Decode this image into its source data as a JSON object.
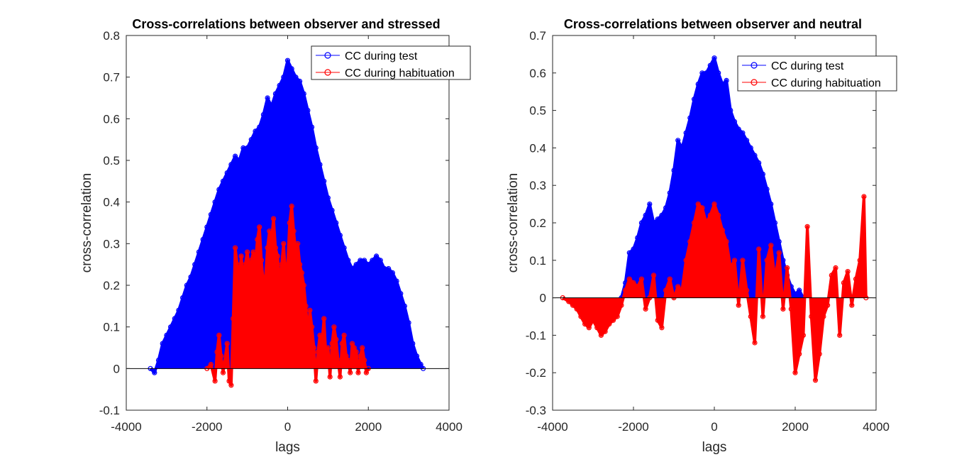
{
  "chart_data": [
    {
      "type": "line",
      "title": "Cross-correlations between observer and stressed",
      "xlabel": "lags",
      "ylabel": "cross-correlation",
      "xlim": [
        -4000,
        4000
      ],
      "ylim": [
        -0.1,
        0.8
      ],
      "xticks": [
        "-4000",
        "-2000",
        "0",
        "2000",
        "4000"
      ],
      "yticks": [
        "-0.1",
        "0",
        "0.1",
        "0.2",
        "0.3",
        "0.4",
        "0.5",
        "0.6",
        "0.7",
        "0.8"
      ],
      "grid": false,
      "legend_position": "top-right",
      "series": [
        {
          "name": "CC during test",
          "color": "#0000ff",
          "marker": "circle",
          "x": [
            -3400,
            -3300,
            -3200,
            -3100,
            -3000,
            -2900,
            -2800,
            -2700,
            -2600,
            -2500,
            -2400,
            -2300,
            -2200,
            -2100,
            -2000,
            -1900,
            -1800,
            -1700,
            -1600,
            -1500,
            -1400,
            -1300,
            -1200,
            -1100,
            -1000,
            -900,
            -800,
            -700,
            -600,
            -500,
            -400,
            -300,
            -200,
            -100,
            0,
            100,
            200,
            300,
            400,
            500,
            600,
            700,
            800,
            900,
            1000,
            1100,
            1200,
            1300,
            1400,
            1500,
            1600,
            1700,
            1800,
            1900,
            2000,
            2100,
            2200,
            2300,
            2400,
            2500,
            2600,
            2700,
            2800,
            2900,
            3000,
            3100,
            3200,
            3300,
            3360
          ],
          "values": [
            0.0,
            -0.01,
            0.02,
            0.06,
            0.08,
            0.1,
            0.12,
            0.14,
            0.17,
            0.2,
            0.22,
            0.25,
            0.28,
            0.31,
            0.34,
            0.37,
            0.4,
            0.43,
            0.45,
            0.47,
            0.49,
            0.51,
            0.5,
            0.53,
            0.53,
            0.55,
            0.57,
            0.58,
            0.61,
            0.65,
            0.63,
            0.66,
            0.68,
            0.7,
            0.74,
            0.72,
            0.7,
            0.69,
            0.66,
            0.62,
            0.58,
            0.53,
            0.49,
            0.45,
            0.41,
            0.38,
            0.35,
            0.32,
            0.29,
            0.26,
            0.24,
            0.25,
            0.26,
            0.26,
            0.25,
            0.26,
            0.27,
            0.26,
            0.24,
            0.24,
            0.23,
            0.21,
            0.18,
            0.15,
            0.11,
            0.06,
            0.03,
            0.01,
            0.0
          ]
        },
        {
          "name": "CC during habituation",
          "color": "#ff0000",
          "marker": "circle",
          "x": [
            -2000,
            -1900,
            -1800,
            -1750,
            -1700,
            -1650,
            -1600,
            -1500,
            -1450,
            -1400,
            -1350,
            -1300,
            -1250,
            -1200,
            -1150,
            -1100,
            -1050,
            -1000,
            -950,
            -900,
            -850,
            -800,
            -750,
            -700,
            -650,
            -600,
            -550,
            -500,
            -450,
            -400,
            -350,
            -300,
            -250,
            -200,
            -150,
            -100,
            -50,
            0,
            50,
            100,
            150,
            200,
            250,
            300,
            350,
            400,
            450,
            500,
            550,
            600,
            650,
            700,
            750,
            800,
            850,
            900,
            950,
            1000,
            1050,
            1100,
            1150,
            1200,
            1250,
            1300,
            1350,
            1400,
            1450,
            1500,
            1550,
            1600,
            1650,
            1700,
            1750,
            1800,
            1850,
            1900,
            1950,
            2000
          ],
          "values": [
            0.0,
            0.01,
            -0.03,
            0.04,
            0.08,
            0.03,
            -0.01,
            0.06,
            -0.03,
            -0.04,
            0.12,
            0.29,
            0.25,
            0.22,
            0.27,
            0.22,
            0.25,
            0.28,
            0.24,
            0.26,
            0.28,
            0.25,
            0.31,
            0.34,
            0.26,
            0.2,
            0.22,
            0.29,
            0.33,
            0.31,
            0.36,
            0.29,
            0.27,
            0.2,
            0.25,
            0.3,
            0.22,
            0.25,
            0.35,
            0.39,
            0.33,
            0.28,
            0.3,
            0.25,
            0.23,
            0.2,
            0.15,
            0.08,
            0.14,
            0.1,
            0.05,
            -0.03,
            0.04,
            0.08,
            0.06,
            0.12,
            0.03,
            0.05,
            -0.02,
            0.06,
            0.1,
            0.07,
            0.02,
            -0.02,
            0.06,
            0.08,
            0.03,
            0.02,
            -0.01,
            0.06,
            0.05,
            0.04,
            -0.01,
            0.03,
            0.05,
            0.02,
            -0.01,
            0.0
          ]
        }
      ]
    },
    {
      "type": "line",
      "title": "Cross-correlations between observer and neutral",
      "xlabel": "lags",
      "ylabel": "cross-correlation",
      "xlim": [
        -4000,
        4000
      ],
      "ylim": [
        -0.3,
        0.7
      ],
      "xticks": [
        "-4000",
        "-2000",
        "0",
        "2000",
        "4000"
      ],
      "yticks": [
        "-0.3",
        "-0.2",
        "-0.1",
        "0",
        "0.1",
        "0.2",
        "0.3",
        "0.4",
        "0.5",
        "0.6",
        "0.7"
      ],
      "grid": false,
      "legend_position": "top-right",
      "series": [
        {
          "name": "CC during test",
          "color": "#0000ff",
          "marker": "circle",
          "x": [
            -2300,
            -2200,
            -2100,
            -2000,
            -1900,
            -1800,
            -1700,
            -1600,
            -1500,
            -1400,
            -1300,
            -1200,
            -1100,
            -1000,
            -900,
            -800,
            -700,
            -600,
            -500,
            -400,
            -300,
            -200,
            -100,
            0,
            100,
            200,
            300,
            400,
            500,
            600,
            700,
            800,
            900,
            1000,
            1100,
            1200,
            1300,
            1400,
            1500,
            1600,
            1700,
            1800,
            1900,
            2000,
            2100,
            2200
          ],
          "values": [
            0.0,
            0.04,
            0.12,
            0.13,
            0.16,
            0.2,
            0.22,
            0.25,
            0.2,
            0.21,
            0.22,
            0.24,
            0.28,
            0.34,
            0.42,
            0.4,
            0.44,
            0.48,
            0.53,
            0.57,
            0.6,
            0.6,
            0.62,
            0.64,
            0.6,
            0.57,
            0.58,
            0.5,
            0.47,
            0.45,
            0.44,
            0.42,
            0.4,
            0.38,
            0.36,
            0.33,
            0.29,
            0.25,
            0.2,
            0.15,
            0.1,
            0.06,
            0.03,
            0.01,
            0.02,
            0.0
          ]
        },
        {
          "name": "CC during habituation",
          "color": "#ff0000",
          "marker": "circle",
          "x": [
            -3750,
            -3600,
            -3500,
            -3400,
            -3300,
            -3200,
            -3100,
            -3000,
            -2900,
            -2800,
            -2700,
            -2600,
            -2500,
            -2400,
            -2300,
            -2200,
            -2100,
            -2000,
            -1900,
            -1800,
            -1700,
            -1600,
            -1500,
            -1400,
            -1300,
            -1200,
            -1100,
            -1000,
            -900,
            -800,
            -700,
            -600,
            -500,
            -400,
            -300,
            -200,
            -100,
            0,
            100,
            200,
            300,
            400,
            500,
            600,
            700,
            800,
            900,
            1000,
            1100,
            1200,
            1300,
            1400,
            1500,
            1600,
            1700,
            1800,
            1900,
            2000,
            2100,
            2200,
            2300,
            2400,
            2500,
            2600,
            2700,
            2800,
            2900,
            3000,
            3100,
            3200,
            3300,
            3400,
            3500,
            3600,
            3700,
            3750
          ],
          "values": [
            0.0,
            -0.01,
            -0.02,
            -0.03,
            -0.05,
            -0.07,
            -0.08,
            -0.06,
            -0.08,
            -0.1,
            -0.09,
            -0.07,
            -0.06,
            -0.05,
            -0.02,
            0.02,
            0.05,
            0.04,
            0.03,
            0.05,
            -0.03,
            0.0,
            0.06,
            -0.06,
            -0.08,
            0.02,
            0.05,
            0.0,
            0.03,
            0.02,
            0.1,
            0.15,
            0.2,
            0.25,
            0.24,
            0.2,
            0.22,
            0.25,
            0.22,
            0.18,
            0.15,
            0.08,
            0.1,
            -0.02,
            0.1,
            0.02,
            -0.05,
            -0.12,
            0.13,
            -0.05,
            0.1,
            0.14,
            0.05,
            0.12,
            -0.03,
            0.08,
            -0.03,
            -0.2,
            -0.15,
            -0.1,
            0.19,
            -0.05,
            -0.22,
            -0.15,
            -0.05,
            -0.02,
            0.06,
            0.08,
            -0.1,
            0.04,
            0.07,
            -0.02,
            0.05,
            0.1,
            0.27,
            0.0
          ]
        }
      ]
    }
  ]
}
